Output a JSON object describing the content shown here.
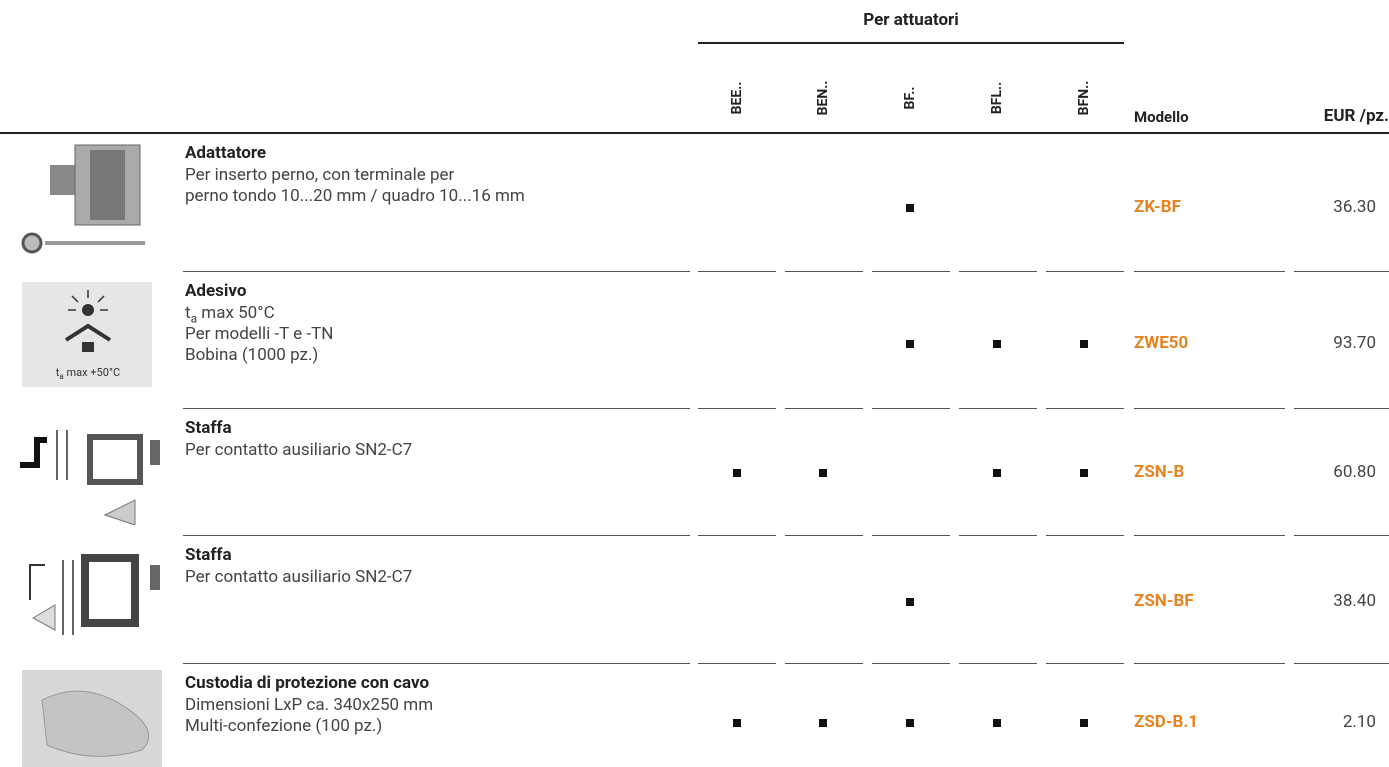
{
  "header": {
    "group": "Per attuatori",
    "actuators": [
      "BEE..",
      "BEN..",
      "BF..",
      "BFL..",
      "BFN.."
    ],
    "model": "Modello",
    "price": "EUR /pz."
  },
  "rows": [
    {
      "title": "Adattatore",
      "description": [
        "Per inserto perno, con terminale per",
        "perno tondo 10...20 mm / quadro 10...16 mm"
      ],
      "compatible": [
        false,
        false,
        true,
        false,
        false
      ],
      "model": "ZK-BF",
      "price": "36.30"
    },
    {
      "title": "Adesivo",
      "description": [
        {
          "main": "t",
          "sub": "a",
          "rest": " max 50°C"
        },
        "Per modelli -T e -TN",
        "Bobina (1000 pz.)"
      ],
      "image_label": {
        "main": "t",
        "sub": "a",
        "rest": " max +50°C"
      },
      "compatible": [
        false,
        false,
        true,
        true,
        true
      ],
      "model": "ZWE50",
      "price": "93.70"
    },
    {
      "title": "Staffa",
      "description": [
        "Per contatto ausiliario SN2-C7"
      ],
      "compatible": [
        true,
        true,
        false,
        true,
        true
      ],
      "model": "ZSN-B",
      "price": "60.80"
    },
    {
      "title": "Staffa",
      "description": [
        "Per contatto ausiliario SN2-C7"
      ],
      "compatible": [
        false,
        false,
        true,
        false,
        false
      ],
      "model": "ZSN-BF",
      "price": "38.40"
    },
    {
      "title": "Custodia di protezione con cavo",
      "description": [
        "Dimensioni LxP ca. 340x250 mm",
        "Multi-confezione (100 pz.)"
      ],
      "compatible": [
        true,
        true,
        true,
        true,
        true
      ],
      "model": "ZSD-B.1",
      "price": "2.10"
    }
  ]
}
